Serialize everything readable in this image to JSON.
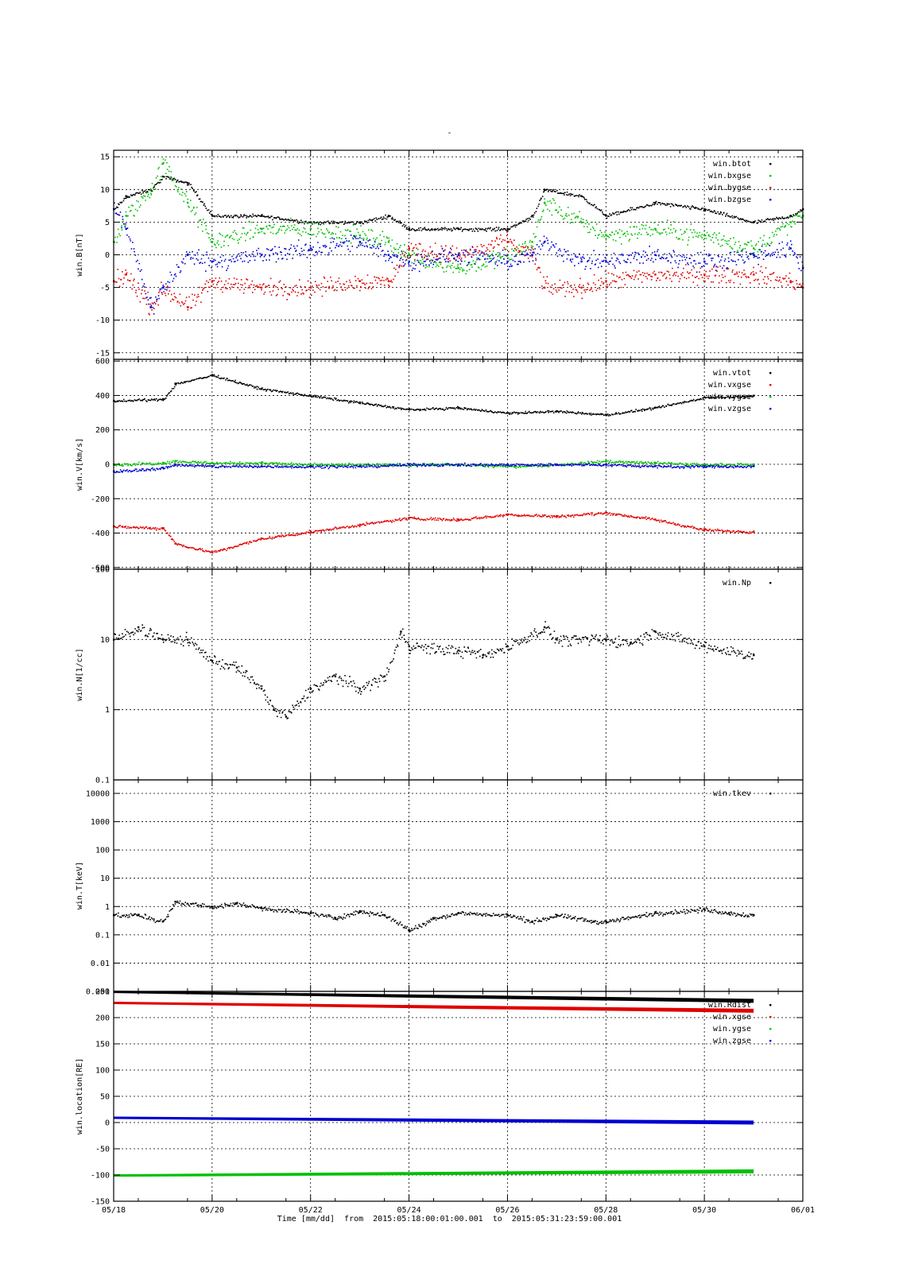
{
  "title": "-",
  "x_axis": {
    "label": "Time [mm/dd]",
    "range_text_from": "from  2015:05:18:00:01:00.001",
    "range_text_to": "to  2015:05:31:23:59:00.001",
    "tick_labels": [
      "05/18",
      "05/20",
      "05/22",
      "05/24",
      "05/26",
      "05/28",
      "05/30",
      "06/01"
    ],
    "start": "2015-05-18T00:00",
    "end": "2015-06-01T00:00"
  },
  "colors": {
    "black": "#000000",
    "red": "#e00000",
    "green": "#00c000",
    "blue": "#0000d0"
  },
  "chart_data": [
    {
      "type": "scatter",
      "ylabel": "win.B[nT]",
      "ylim": [
        -16,
        16
      ],
      "yticks": [
        15,
        10,
        5,
        0,
        -5,
        -10,
        -15
      ],
      "log": false,
      "grid": true,
      "legend_position": "top-right",
      "x": [
        "2015-05-18T00:00",
        "2015-05-18T06:00",
        "2015-05-18T18:00",
        "2015-05-19T00:00",
        "2015-05-19T12:00",
        "2015-05-20T00:00",
        "2015-05-21T00:00",
        "2015-05-22T00:00",
        "2015-05-23T00:00",
        "2015-05-23T14:00",
        "2015-05-24T00:00",
        "2015-05-25T00:00",
        "2015-05-26T00:00",
        "2015-05-26T12:00",
        "2015-05-26T18:00",
        "2015-05-27T12:00",
        "2015-05-28T00:00",
        "2015-05-29T00:00",
        "2015-05-30T00:00",
        "2015-05-31T00:00",
        "2015-05-31T18:00",
        "2015-06-01T00:00"
      ],
      "series": [
        {
          "name": "win.btot",
          "color": "#000000",
          "values": [
            7,
            9,
            10,
            12,
            11,
            6,
            6,
            5,
            5,
            6,
            4,
            4,
            4,
            6,
            10,
            9,
            6,
            8,
            7,
            5,
            6,
            7
          ]
        },
        {
          "name": "win.bxgse",
          "color": "#00c000",
          "values": [
            2,
            6,
            10,
            14,
            8,
            2,
            4,
            4,
            3,
            2,
            0,
            -2,
            0,
            2,
            8,
            5,
            3,
            4,
            3,
            1,
            5,
            6
          ]
        },
        {
          "name": "win.bygse",
          "color": "#e00000",
          "values": [
            -4,
            -3,
            -8,
            -5,
            -8,
            -4,
            -5,
            -5,
            -4,
            -4,
            1,
            0,
            2,
            0,
            -5,
            -5,
            -4,
            -3,
            -3,
            -3,
            -4,
            -5
          ]
        },
        {
          "name": "win.bzgse",
          "color": "#0000d0",
          "values": [
            7,
            4,
            -8,
            -5,
            0,
            -1,
            0,
            1,
            2,
            0,
            -1,
            0,
            -1,
            0,
            2,
            -1,
            -1,
            0,
            -1,
            0,
            1,
            -2
          ]
        }
      ]
    },
    {
      "type": "scatter",
      "ylabel": "win.V[km/s]",
      "ylim": [
        -610,
        610
      ],
      "yticks": [
        600,
        400,
        200,
        0,
        -200,
        -400,
        -600
      ],
      "log": false,
      "grid": true,
      "legend_position": "top-right",
      "x": [
        "2015-05-18T00:00",
        "2015-05-19T00:00",
        "2015-05-19T06:00",
        "2015-05-20T00:00",
        "2015-05-21T00:00",
        "2015-05-22T00:00",
        "2015-05-23T00:00",
        "2015-05-24T00:00",
        "2015-05-25T00:00",
        "2015-05-26T00:00",
        "2015-05-27T00:00",
        "2015-05-28T00:00",
        "2015-05-29T00:00",
        "2015-05-30T00:00",
        "2015-05-31T00:00"
      ],
      "series": [
        {
          "name": "win.vtot",
          "color": "#000000",
          "values": [
            370,
            380,
            470,
            520,
            440,
            400,
            360,
            320,
            330,
            300,
            310,
            290,
            330,
            390,
            400
          ]
        },
        {
          "name": "win.vxgse",
          "color": "#e00000",
          "values": [
            -360,
            -370,
            -460,
            -510,
            -430,
            -390,
            -350,
            -310,
            -320,
            -290,
            -300,
            -280,
            -320,
            -380,
            -390
          ]
        },
        {
          "name": "win.vygse",
          "color": "#00c000",
          "values": [
            0,
            10,
            20,
            10,
            10,
            0,
            0,
            0,
            0,
            -10,
            0,
            20,
            10,
            0,
            0
          ]
        },
        {
          "name": "win.vzgse",
          "color": "#0000d0",
          "values": [
            -40,
            -20,
            0,
            -10,
            -10,
            -10,
            -10,
            0,
            0,
            0,
            0,
            0,
            -10,
            -10,
            -10
          ]
        }
      ]
    },
    {
      "type": "scatter",
      "ylabel": "win.N[1/cc]",
      "ylim": [
        0.1,
        100
      ],
      "yticks": [
        100,
        10,
        1,
        0.1
      ],
      "log": true,
      "grid": true,
      "legend_position": "top-right",
      "x": [
        "2015-05-18T00:00",
        "2015-05-18T12:00",
        "2015-05-19T00:00",
        "2015-05-19T12:00",
        "2015-05-20T00:00",
        "2015-05-20T12:00",
        "2015-05-21T00:00",
        "2015-05-21T06:00",
        "2015-05-21T12:00",
        "2015-05-22T00:00",
        "2015-05-22T12:00",
        "2015-05-23T00:00",
        "2015-05-23T12:00",
        "2015-05-23T20:00",
        "2015-05-24T00:00",
        "2015-05-25T00:00",
        "2015-05-25T12:00",
        "2015-05-26T00:00",
        "2015-05-26T18:00",
        "2015-05-27T00:00",
        "2015-05-28T00:00",
        "2015-05-28T12:00",
        "2015-05-29T00:00",
        "2015-05-30T00:00",
        "2015-05-31T00:00"
      ],
      "series": [
        {
          "name": "win.Np",
          "color": "#000000",
          "values": [
            10,
            15,
            10,
            10,
            5,
            4,
            2,
            1,
            0.8,
            2,
            3,
            2,
            3,
            13,
            8,
            7,
            6,
            8,
            15,
            10,
            10,
            9,
            13,
            8,
            6
          ]
        }
      ]
    },
    {
      "type": "scatter",
      "ylabel": "win.T[keV]",
      "ylim": [
        0.001,
        30000
      ],
      "yticks": [
        10000,
        1000,
        100,
        10,
        1,
        0.1,
        0.01,
        0.001
      ],
      "ytick_labels": [
        "10000",
        "1000",
        "100",
        "10",
        "1",
        "0.1",
        "0.01",
        "0.001"
      ],
      "log": true,
      "grid": true,
      "legend_position": "top-right",
      "x": [
        "2015-05-18T00:00",
        "2015-05-18T12:00",
        "2015-05-19T00:00",
        "2015-05-19T06:00",
        "2015-05-20T00:00",
        "2015-05-20T12:00",
        "2015-05-21T00:00",
        "2015-05-22T00:00",
        "2015-05-22T12:00",
        "2015-05-23T00:00",
        "2015-05-23T12:00",
        "2015-05-24T00:00",
        "2015-05-24T12:00",
        "2015-05-25T00:00",
        "2015-05-26T00:00",
        "2015-05-26T12:00",
        "2015-05-27T00:00",
        "2015-05-27T18:00",
        "2015-05-28T00:00",
        "2015-05-29T00:00",
        "2015-05-30T00:00",
        "2015-05-30T12:00",
        "2015-05-31T00:00"
      ],
      "series": [
        {
          "name": "win.tkev",
          "color": "#000000",
          "values": [
            0.5,
            0.5,
            0.3,
            1.5,
            1.0,
            1.3,
            0.9,
            0.6,
            0.4,
            0.7,
            0.5,
            0.15,
            0.4,
            0.6,
            0.5,
            0.3,
            0.5,
            0.3,
            0.3,
            0.6,
            0.8,
            0.6,
            0.5
          ]
        }
      ]
    },
    {
      "type": "line",
      "ylabel": "win.location[RE]",
      "ylim": [
        -150,
        250
      ],
      "yticks": [
        200,
        150,
        100,
        50,
        0,
        -50,
        -100,
        -150
      ],
      "top_tick_label": "250",
      "log": false,
      "grid": true,
      "legend_position": "top-right",
      "x": [
        "2015-05-18T00:00",
        "2015-05-31T00:00"
      ],
      "series": [
        {
          "name": "win.Rdist",
          "color": "#000000",
          "values": [
            249,
            232
          ]
        },
        {
          "name": "win.xgse",
          "color": "#e00000",
          "values": [
            228,
            213
          ]
        },
        {
          "name": "win.ygse",
          "color": "#00c000",
          "values": [
            -101,
            -93
          ]
        },
        {
          "name": "win.zgse",
          "color": "#0000d0",
          "values": [
            9,
            0
          ]
        }
      ]
    }
  ]
}
